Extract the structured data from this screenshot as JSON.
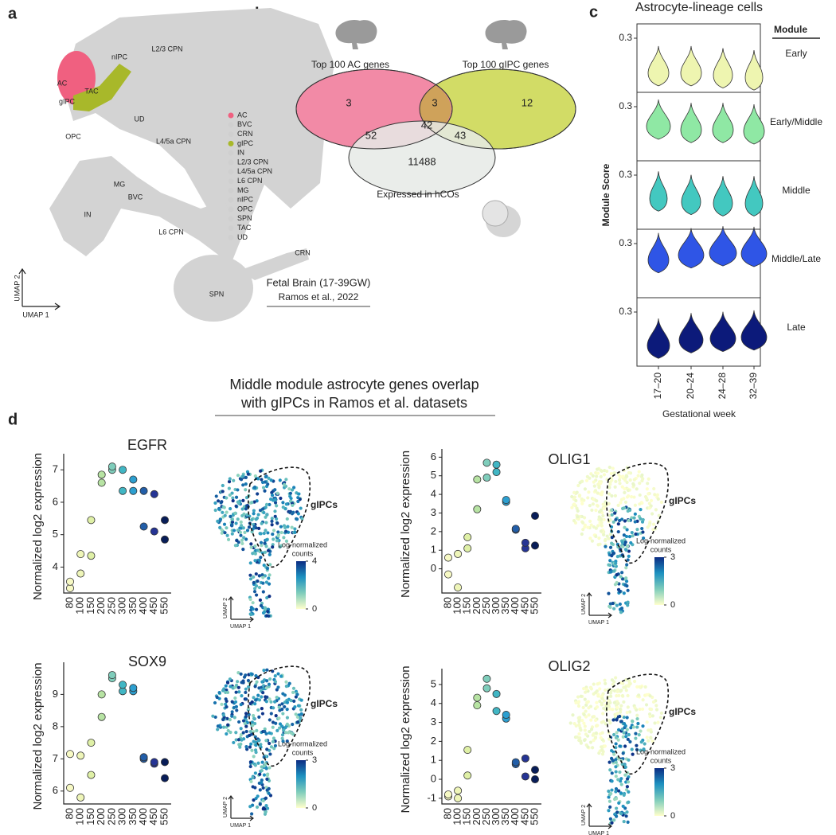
{
  "panel_labels": [
    "a",
    "b",
    "c",
    "d"
  ],
  "umap": {
    "cluster_labels": [
      "nIPC",
      "L2/3 CPN",
      "AC",
      "TAC",
      "gIPC",
      "UD",
      "OPC",
      "L4/5a CPN",
      "MG",
      "BVC",
      "IN",
      "L6 CPN",
      "CRN",
      "SPN"
    ],
    "legend": [
      {
        "label": "AC",
        "color": "#f06080"
      },
      {
        "label": "BVC",
        "color": "#cfcfcf"
      },
      {
        "label": "CRN",
        "color": "#cfcfcf"
      },
      {
        "label": "gIPC",
        "color": "#a8b82a"
      },
      {
        "label": "IN",
        "color": "#cfcfcf"
      },
      {
        "label": "L2/3 CPN",
        "color": "#cfcfcf"
      },
      {
        "label": "L4/5a CPN",
        "color": "#cfcfcf"
      },
      {
        "label": "L6 CPN",
        "color": "#cfcfcf"
      },
      {
        "label": "MG",
        "color": "#cfcfcf"
      },
      {
        "label": "nIPC",
        "color": "#cfcfcf"
      },
      {
        "label": "OPC",
        "color": "#cfcfcf"
      },
      {
        "label": "SPN",
        "color": "#cfcfcf"
      },
      {
        "label": "TAC",
        "color": "#cfcfcf"
      },
      {
        "label": "UD",
        "color": "#cfcfcf"
      }
    ],
    "x_axis_label": "UMAP 1",
    "y_axis_label": "UMAP 2",
    "dataset_title": "Fetal Brain (17-39GW)",
    "dataset_reference": "Ramos et al., 2022"
  },
  "venn": {
    "set_labels": [
      "Top 100 AC genes",
      "Top 100 gIPC genes",
      "Expressed in hCOs"
    ],
    "counts": {
      "ac_only": 3,
      "ac_gipc": 3,
      "gipc_only": 12,
      "ac_hco": 52,
      "all": 42,
      "gipc_hco": 43,
      "hco_only": 11488
    }
  },
  "violins": {
    "title": "Astrocyte-lineage cells",
    "y_axis_label": "Module Score",
    "x_axis_label": "Gestational week",
    "legend_header": "Module",
    "categories": [
      "17–20",
      "20–24",
      "24–28",
      "32–39"
    ],
    "modules": [
      {
        "name": "Early",
        "color": "#eef5b0",
        "tick": "0.3"
      },
      {
        "name": "Early/Middle",
        "color": "#8fe8a4",
        "tick": "0.3"
      },
      {
        "name": "Middle",
        "color": "#43c8c0",
        "tick": "0.3"
      },
      {
        "name": "Middle/Late",
        "color": "#2f55e6",
        "tick": "0.3"
      },
      {
        "name": "Late",
        "color": "#0c1a7a",
        "tick": "0.3"
      }
    ]
  },
  "panel_d_title": [
    "Middle module astrocyte genes overlap",
    "with gIPCs in Ramos et al. datasets"
  ],
  "chart_data": [
    {
      "type": "scatter",
      "title": "EGFR",
      "y_axis_label": "Normalized log2 expression",
      "categories": [
        "80",
        "100",
        "150",
        "200",
        "250",
        "300",
        "350",
        "400",
        "450",
        "550"
      ],
      "series": [
        {
          "values": [
            3.35,
            3.8,
            4.35,
            6.6,
            7.0,
            6.35,
            6.35,
            5.25,
            5.1,
            4.85
          ]
        },
        {
          "values": [
            3.55,
            4.4,
            5.45,
            6.85,
            7.1,
            7.0,
            6.7,
            6.35,
            6.25,
            5.45
          ]
        }
      ],
      "point_colors": [
        "#f7f9c4",
        "#eef5b8",
        "#dff0a6",
        "#b7e3a3",
        "#7fcdbb",
        "#41b6c4",
        "#2c9fd0",
        "#225ea8",
        "#253494",
        "#081d58"
      ],
      "ylim": [
        3.2,
        7.3
      ],
      "yticks": [
        4,
        5,
        6,
        7
      ],
      "inset": {
        "region_label": "gIPCs",
        "x_axis_label": "UMAP 1",
        "y_axis_label": "UMAP 2",
        "colorbar": {
          "label": [
            "Log-normalized",
            "counts"
          ],
          "clim": [
            0,
            4
          ],
          "ticks": [
            0,
            4
          ],
          "colors": [
            "#ffffcc",
            "#7fcdbb",
            "#1d91c0",
            "#0c2c84"
          ]
        }
      }
    },
    {
      "type": "scatter",
      "title": "OLIG1",
      "y_axis_label": "Normalized log2 expression",
      "categories": [
        "80",
        "100",
        "150",
        "200",
        "250",
        "300",
        "350",
        "400",
        "450",
        "550"
      ],
      "series": [
        {
          "values": [
            -0.3,
            -1.0,
            1.1,
            3.2,
            4.9,
            5.2,
            3.6,
            2.1,
            1.1,
            1.25
          ]
        },
        {
          "values": [
            0.6,
            0.8,
            1.7,
            4.8,
            5.7,
            5.6,
            3.7,
            2.15,
            1.4,
            2.85
          ]
        }
      ],
      "point_colors": [
        "#f7f9c4",
        "#eef5b8",
        "#dff0a6",
        "#b7e3a3",
        "#7fcdbb",
        "#41b6c4",
        "#2c9fd0",
        "#225ea8",
        "#253494",
        "#081d58"
      ],
      "ylim": [
        -1.3,
        6.1
      ],
      "yticks": [
        0,
        1,
        2,
        3,
        4,
        5,
        6
      ],
      "inset": {
        "region_label": "gIPCs",
        "x_axis_label": "UMAP 1",
        "y_axis_label": "UMAP 2",
        "colorbar": {
          "label": [
            "Log-normalized",
            "counts"
          ],
          "clim": [
            0,
            3
          ],
          "ticks": [
            0,
            3
          ],
          "colors": [
            "#ffffcc",
            "#7fcdbb",
            "#1d91c0",
            "#0c2c84"
          ]
        }
      }
    },
    {
      "type": "scatter",
      "title": "SOX9",
      "y_axis_label": "Normalized log2 expression",
      "categories": [
        "80",
        "100",
        "150",
        "200",
        "250",
        "300",
        "350",
        "400",
        "450",
        "550"
      ],
      "series": [
        {
          "values": [
            6.1,
            5.8,
            6.5,
            8.3,
            9.5,
            9.1,
            9.1,
            7.0,
            6.85,
            6.4
          ]
        },
        {
          "values": [
            7.15,
            7.1,
            7.5,
            9.0,
            9.6,
            9.3,
            9.2,
            7.05,
            6.9,
            6.9
          ]
        }
      ],
      "point_colors": [
        "#f7f9c4",
        "#eef5b8",
        "#dff0a6",
        "#b7e3a3",
        "#7fcdbb",
        "#41b6c4",
        "#2c9fd0",
        "#225ea8",
        "#253494",
        "#081d58"
      ],
      "ylim": [
        5.6,
        9.8
      ],
      "yticks": [
        6,
        7,
        8,
        9
      ],
      "inset": {
        "region_label": "gIPCs",
        "x_axis_label": "UMAP 1",
        "y_axis_label": "UMAP 2",
        "colorbar": {
          "label": [
            "Log-normalized",
            "counts"
          ],
          "clim": [
            0,
            3
          ],
          "ticks": [
            0,
            3
          ],
          "colors": [
            "#ffffcc",
            "#7fcdbb",
            "#1d91c0",
            "#0c2c84"
          ]
        }
      }
    },
    {
      "type": "scatter",
      "title": "OLIG2",
      "y_axis_label": "Normalized log2 expression",
      "categories": [
        "80",
        "100",
        "150",
        "200",
        "250",
        "300",
        "350",
        "400",
        "450",
        "550"
      ],
      "series": [
        {
          "values": [
            -0.9,
            -1.0,
            0.2,
            3.9,
            4.8,
            3.6,
            3.2,
            0.8,
            0.15,
            0.0
          ]
        },
        {
          "values": [
            -0.8,
            -0.6,
            1.55,
            4.3,
            5.3,
            4.5,
            3.4,
            0.9,
            1.1,
            0.5
          ]
        }
      ],
      "point_colors": [
        "#f7f9c4",
        "#eef5b8",
        "#dff0a6",
        "#b7e3a3",
        "#7fcdbb",
        "#41b6c4",
        "#2c9fd0",
        "#225ea8",
        "#253494",
        "#081d58"
      ],
      "ylim": [
        -1.3,
        5.5
      ],
      "yticks": [
        -1,
        0,
        1,
        2,
        3,
        4,
        5
      ],
      "inset": {
        "region_label": "gIPCs",
        "x_axis_label": "UMAP 1",
        "y_axis_label": "UMAP 2",
        "colorbar": {
          "label": [
            "Log-normalized",
            "counts"
          ],
          "clim": [
            0,
            3
          ],
          "ticks": [
            0,
            3
          ],
          "colors": [
            "#ffffcc",
            "#7fcdbb",
            "#1d91c0",
            "#0c2c84"
          ]
        }
      }
    }
  ]
}
